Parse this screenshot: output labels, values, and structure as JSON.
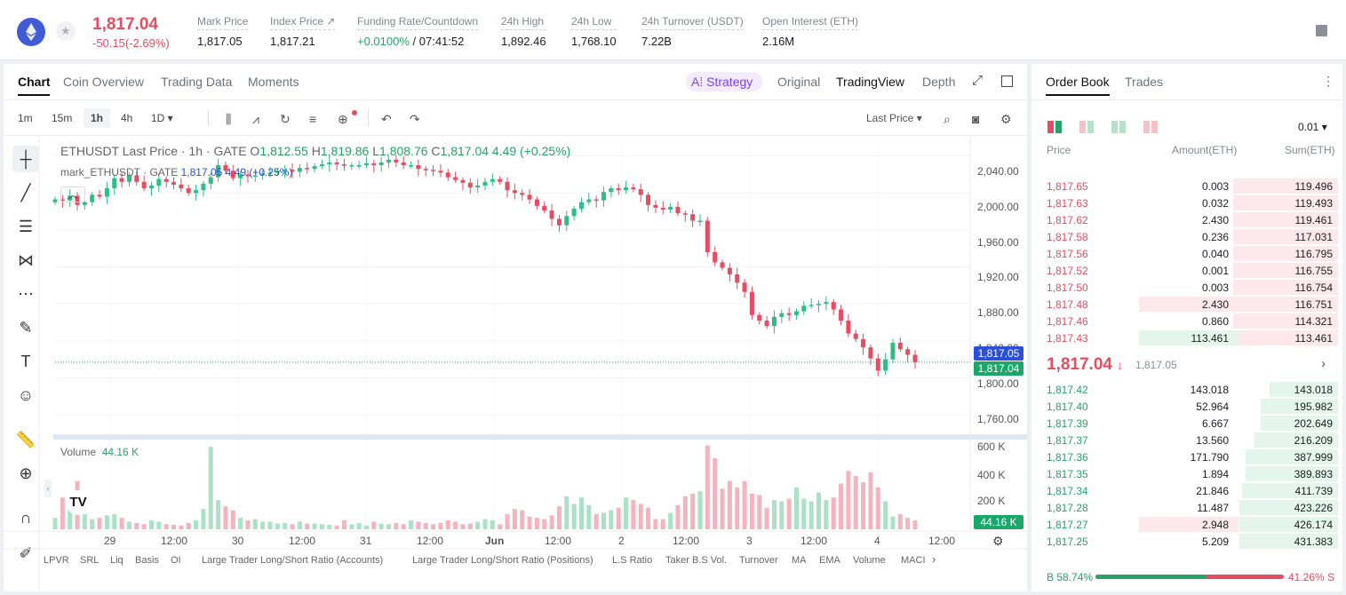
{
  "header": {
    "price": "1,817.04",
    "change": "-50.15(-2.69%)",
    "stats": [
      {
        "label": "Mark Price",
        "value": "1,817.05"
      },
      {
        "label": "Index Price ↗",
        "value": "1,817.21"
      },
      {
        "label": "Funding Rate/Countdown",
        "value_a": "+0.0100%",
        "value_b": " / 07:41:52"
      },
      {
        "label": "24h High",
        "value": "1,892.46"
      },
      {
        "label": "24h Low",
        "value": "1,768.10"
      },
      {
        "label": "24h Turnover (USDT)",
        "value": "7.22B"
      },
      {
        "label": "Open Interest (ETH)",
        "value": "2.16M"
      }
    ]
  },
  "chart_tabs": [
    "Chart",
    "Coin Overview",
    "Trading Data",
    "Moments"
  ],
  "view_tabs": {
    "strategy": "Strategy",
    "original": "Original",
    "tradingview": "TradingView",
    "depth": "Depth"
  },
  "timeframes": [
    "1m",
    "15m",
    "1h",
    "4h",
    "1D ▾"
  ],
  "last_price_select": "Last Price",
  "legend": {
    "symbol": "ETHUSDT Last Price · 1h · GATE",
    "o_label": "O",
    "o": "1,812.55",
    "h_label": "H",
    "h": "1,819.86",
    "l_label": "L",
    "l": "1,808.76",
    "c_label": "C",
    "c": "1,817.04",
    "chg": "4.49 (+0.25%)",
    "mark_label": "mark_ETHUSDT · GATE",
    "mark_val": "1,817.05",
    "mark_chg": "4.49 (+0.25%)"
  },
  "tags": {
    "mark": "1,817.05",
    "last": "1,817.04",
    "vol": "44.16 K"
  },
  "volume_label": "Volume",
  "volume_value": "44.16 K",
  "indicators": [
    "LPVR",
    "SRL",
    "Liq",
    "Basis",
    "OI",
    "Large Trader Long/Short Ratio (Accounts)",
    "Large Trader Long/Short Ratio (Positions)",
    "L.S Ratio",
    "Taker B.S Vol.",
    "Turnover",
    "MA",
    "EMA",
    "Volume",
    "MACI"
  ],
  "chart_data": {
    "type": "candlestick",
    "y_ticks": [
      "2,040.00",
      "2,000.00",
      "1,960.00",
      "1,920.00",
      "1,880.00",
      "1,840.00",
      "1,800.00",
      "1,760.00"
    ],
    "vol_ticks": [
      "600 K",
      "400 K",
      "200 K"
    ],
    "x_ticks": [
      "29",
      "12:00",
      "30",
      "12:00",
      "31",
      "12:00",
      "Jun",
      "12:00",
      "2",
      "12:00",
      "3",
      "12:00",
      "4",
      "12:00"
    ],
    "ylim": [
      1740,
      2055
    ],
    "close_path": [
      1993,
      1992,
      1997,
      1987,
      1990,
      1998,
      1996,
      2005,
      2016,
      2012,
      2019,
      2012,
      2005,
      2008,
      2015,
      2012,
      2009,
      2005,
      2000,
      2003,
      2010,
      2017,
      2030,
      2024,
      2016,
      2020,
      2018,
      2019,
      2021,
      2022,
      2024,
      2025,
      2023,
      2027,
      2026,
      2029,
      2031,
      2033,
      2031,
      2030,
      2030,
      2030,
      2032,
      2030,
      2033,
      2036,
      2033,
      2030,
      2030,
      2026,
      2025,
      2024,
      2022,
      2017,
      2014,
      2011,
      2006,
      2008,
      2012,
      2015,
      2012,
      2003,
      2000,
      1998,
      1993,
      1986,
      1981,
      1972,
      1965,
      1975,
      1983,
      1990,
      1993,
      1992,
      2001,
      2005,
      2003,
      2006,
      2004,
      1998,
      1987,
      1984,
      1982,
      1985,
      1978,
      1977,
      1970,
      1970,
      1936,
      1925,
      1919,
      1912,
      1903,
      1893,
      1868,
      1862,
      1856,
      1866,
      1870,
      1868,
      1872,
      1878,
      1879,
      1880,
      1882,
      1874,
      1862,
      1848,
      1842,
      1833,
      1821,
      1808,
      1820,
      1838,
      1831,
      1825,
      1817
    ],
    "volumes": [
      90,
      250,
      220,
      380,
      120,
      80,
      90,
      110,
      120,
      90,
      60,
      50,
      40,
      70,
      60,
      40,
      35,
      30,
      50,
      70,
      160,
      650,
      230,
      180,
      150,
      90,
      70,
      80,
      60,
      60,
      45,
      50,
      40,
      60,
      45,
      45,
      40,
      35,
      30,
      70,
      40,
      50,
      30,
      60,
      45,
      40,
      50,
      40,
      70,
      60,
      50,
      40,
      50,
      70,
      60,
      40,
      45,
      60,
      80,
      70,
      40,
      120,
      160,
      150,
      100,
      90,
      80,
      110,
      180,
      260,
      200,
      250,
      190,
      120,
      130,
      150,
      170,
      250,
      230,
      200,
      170,
      80,
      80,
      130,
      190,
      260,
      280,
      300,
      660,
      560,
      320,
      380,
      330,
      380,
      280,
      270,
      170,
      230,
      220,
      240,
      330,
      240,
      220,
      290,
      230,
      250,
      360,
      460,
      420,
      370,
      450,
      330,
      220,
      100,
      120,
      90,
      70
    ]
  },
  "orderbook": {
    "tabs": [
      "Order Book",
      "Trades"
    ],
    "precision": "0.01",
    "headers": [
      "Price",
      "Amount(ETH)",
      "Sum(ETH)"
    ],
    "asks": [
      {
        "price": "1,817.65",
        "amount": "0.003",
        "sum": "119.496",
        "amt_frac": 0,
        "sum_frac": 0.35
      },
      {
        "price": "1,817.63",
        "amount": "0.032",
        "sum": "119.493",
        "amt_frac": 0,
        "sum_frac": 0.35
      },
      {
        "price": "1,817.62",
        "amount": "2.430",
        "sum": "119.461",
        "amt_frac": 0,
        "sum_frac": 0.35
      },
      {
        "price": "1,817.58",
        "amount": "0.236",
        "sum": "117.031",
        "amt_frac": 0,
        "sum_frac": 0.35
      },
      {
        "price": "1,817.56",
        "amount": "0.040",
        "sum": "116.795",
        "amt_frac": 0,
        "sum_frac": 0.35
      },
      {
        "price": "1,817.52",
        "amount": "0.001",
        "sum": "116.755",
        "amt_frac": 0,
        "sum_frac": 0.35
      },
      {
        "price": "1,817.50",
        "amount": "0.003",
        "sum": "116.754",
        "amt_frac": 0,
        "sum_frac": 0.35
      },
      {
        "price": "1,817.48",
        "amount": "2.430",
        "sum": "116.751",
        "amt_frac": 0.67,
        "sum_frac": 0.35
      },
      {
        "price": "1,817.46",
        "amount": "0.860",
        "sum": "114.321",
        "amt_frac": 0,
        "sum_frac": 0.35
      },
      {
        "price": "1,817.43",
        "amount": "113.461",
        "sum": "113.461",
        "amt_frac": 0.67,
        "sum_frac": 0.35,
        "green_amt": true
      }
    ],
    "mid_price": "1,817.04",
    "mid_mark": "1,817.05",
    "bids": [
      {
        "price": "1,817.42",
        "amount": "143.018",
        "sum": "143.018",
        "amt_frac": 0,
        "sum_frac": 0.23
      },
      {
        "price": "1,817.40",
        "amount": "52.964",
        "sum": "195.982",
        "amt_frac": 0,
        "sum_frac": 0.26
      },
      {
        "price": "1,817.39",
        "amount": "6.667",
        "sum": "202.649",
        "amt_frac": 0,
        "sum_frac": 0.26
      },
      {
        "price": "1,817.37",
        "amount": "13.560",
        "sum": "216.209",
        "amt_frac": 0,
        "sum_frac": 0.28
      },
      {
        "price": "1,817.36",
        "amount": "171.790",
        "sum": "387.999",
        "amt_frac": 0,
        "sum_frac": 0.31
      },
      {
        "price": "1,817.35",
        "amount": "1.894",
        "sum": "389.893",
        "amt_frac": 0,
        "sum_frac": 0.31
      },
      {
        "price": "1,817.34",
        "amount": "21.846",
        "sum": "411.739",
        "amt_frac": 0,
        "sum_frac": 0.32
      },
      {
        "price": "1,817.28",
        "amount": "11.487",
        "sum": "423.226",
        "amt_frac": 0,
        "sum_frac": 0.33
      },
      {
        "price": "1,817.27",
        "amount": "2.948",
        "sum": "426.174",
        "amt_frac": 0.67,
        "sum_frac": 0.33,
        "red_amt": true
      },
      {
        "price": "1,817.25",
        "amount": "5.209",
        "sum": "431.383",
        "amt_frac": 0,
        "sum_frac": 0.33
      }
    ],
    "buy_ratio": "B 58.74%",
    "sell_ratio": "41.26% S",
    "buy_frac": 0.5874
  }
}
